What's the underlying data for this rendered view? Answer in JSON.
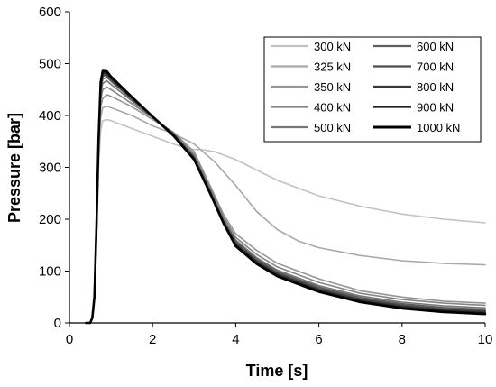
{
  "chart_data": {
    "type": "line",
    "title": "",
    "xlabel": "Time [s]",
    "ylabel": "Pressure [bar]",
    "xlim": [
      0,
      10
    ],
    "ylim": [
      0,
      600
    ],
    "xticks": [
      0,
      2,
      4,
      6,
      8,
      10
    ],
    "yticks": [
      0,
      100,
      200,
      300,
      400,
      500,
      600
    ],
    "grid": false,
    "legend_position": "top-right",
    "series": [
      {
        "name": "300 kN",
        "color": "#c2c2c2",
        "x": [
          0.4,
          0.5,
          0.55,
          0.6,
          0.65,
          0.7,
          0.75,
          0.8,
          0.9,
          1.0,
          1.5,
          2.0,
          2.5,
          2.9,
          3.2,
          3.5,
          4.0,
          5.0,
          6.0,
          7.0,
          8.0,
          9.0,
          10.0
        ],
        "y": [
          0,
          0,
          10,
          50,
          160,
          300,
          370,
          390,
          392,
          390,
          375,
          360,
          345,
          335,
          334,
          330,
          315,
          275,
          245,
          225,
          210,
          200,
          193
        ]
      },
      {
        "name": "325 kN",
        "color": "#a8a8a8",
        "x": [
          0.4,
          0.5,
          0.55,
          0.6,
          0.65,
          0.7,
          0.75,
          0.8,
          0.9,
          1.0,
          1.5,
          2.0,
          2.5,
          3.0,
          3.5,
          4.0,
          4.5,
          5.0,
          5.5,
          6.0,
          7.0,
          8.0,
          9.0,
          10.0
        ],
        "y": [
          0,
          0,
          10,
          50,
          170,
          320,
          395,
          415,
          418,
          415,
          400,
          380,
          365,
          345,
          310,
          265,
          215,
          180,
          158,
          145,
          130,
          120,
          115,
          112
        ]
      },
      {
        "name": "350 kN",
        "color": "#959595",
        "x": [
          0.4,
          0.5,
          0.55,
          0.6,
          0.65,
          0.7,
          0.75,
          0.8,
          0.9,
          1.0,
          1.5,
          2.0,
          2.5,
          3.0,
          3.4,
          3.7,
          4.0,
          4.5,
          5.0,
          6.0,
          7.0,
          8.0,
          9.0,
          10.0
        ],
        "y": [
          0,
          0,
          10,
          50,
          175,
          330,
          415,
          433,
          440,
          437,
          417,
          392,
          368,
          330,
          262,
          210,
          172,
          140,
          115,
          85,
          62,
          50,
          42,
          38
        ]
      },
      {
        "name": "400 kN",
        "color": "#858585",
        "x": [
          0.4,
          0.5,
          0.55,
          0.6,
          0.65,
          0.7,
          0.75,
          0.8,
          0.9,
          1.0,
          1.5,
          2.0,
          2.5,
          3.0,
          3.4,
          3.7,
          4.0,
          4.5,
          5.0,
          6.0,
          7.0,
          8.0,
          9.0,
          10.0
        ],
        "y": [
          0,
          0,
          10,
          50,
          178,
          340,
          430,
          450,
          455,
          450,
          423,
          395,
          367,
          325,
          258,
          205,
          165,
          132,
          108,
          78,
          57,
          45,
          38,
          34
        ]
      },
      {
        "name": "500 kN",
        "color": "#767676",
        "x": [
          0.4,
          0.5,
          0.55,
          0.6,
          0.65,
          0.7,
          0.75,
          0.8,
          0.9,
          1.0,
          1.5,
          2.0,
          2.5,
          3.0,
          3.4,
          3.7,
          4.0,
          4.5,
          5.0,
          6.0,
          7.0,
          8.0,
          9.0,
          10.0
        ],
        "y": [
          0,
          0,
          10,
          50,
          180,
          345,
          440,
          462,
          467,
          460,
          428,
          396,
          366,
          322,
          254,
          200,
          160,
          126,
          102,
          72,
          52,
          40,
          33,
          29
        ]
      },
      {
        "name": "600 kN",
        "color": "#5e5e5e",
        "x": [
          0.4,
          0.5,
          0.55,
          0.6,
          0.65,
          0.7,
          0.75,
          0.8,
          0.9,
          1.0,
          1.5,
          2.0,
          2.5,
          3.0,
          3.4,
          3.7,
          4.0,
          4.5,
          5.0,
          6.0,
          7.0,
          8.0,
          9.0,
          10.0
        ],
        "y": [
          0,
          0,
          10,
          50,
          182,
          348,
          448,
          470,
          474,
          466,
          431,
          397,
          365,
          320,
          252,
          198,
          157,
          123,
          99,
          69,
          49,
          37,
          30,
          26
        ]
      },
      {
        "name": "700 kN",
        "color": "#4c4c4c",
        "x": [
          0.4,
          0.5,
          0.55,
          0.6,
          0.65,
          0.7,
          0.75,
          0.8,
          0.9,
          1.0,
          1.5,
          2.0,
          2.5,
          3.0,
          3.4,
          3.7,
          4.0,
          4.5,
          5.0,
          6.0,
          7.0,
          8.0,
          9.0,
          10.0
        ],
        "y": [
          0,
          0,
          10,
          50,
          184,
          350,
          454,
          476,
          478,
          469,
          433,
          398,
          364,
          318,
          250,
          196,
          154,
          120,
          96,
          66,
          46,
          34,
          27,
          23
        ]
      },
      {
        "name": "800 kN",
        "color": "#383838",
        "x": [
          0.4,
          0.5,
          0.55,
          0.6,
          0.65,
          0.7,
          0.75,
          0.8,
          0.9,
          1.0,
          1.5,
          2.0,
          2.5,
          3.0,
          3.4,
          3.7,
          4.0,
          4.5,
          5.0,
          6.0,
          7.0,
          8.0,
          9.0,
          10.0
        ],
        "y": [
          0,
          0,
          10,
          50,
          185,
          352,
          458,
          480,
          481,
          471,
          434,
          398,
          363,
          317,
          249,
          195,
          152,
          118,
          94,
          64,
          44,
          32,
          25,
          21
        ]
      },
      {
        "name": "900 kN",
        "color": "#1e1e1e",
        "x": [
          0.4,
          0.5,
          0.55,
          0.6,
          0.65,
          0.7,
          0.75,
          0.8,
          0.9,
          1.0,
          1.5,
          2.0,
          2.5,
          3.0,
          3.4,
          3.7,
          4.0,
          4.5,
          5.0,
          6.0,
          7.0,
          8.0,
          9.0,
          10.0
        ],
        "y": [
          0,
          0,
          10,
          50,
          186,
          354,
          461,
          483,
          483,
          473,
          435,
          398,
          362,
          316,
          248,
          194,
          150,
          116,
          92,
          62,
          42,
          30,
          23,
          19
        ]
      },
      {
        "name": "1000 kN",
        "color": "#000000",
        "x": [
          0.4,
          0.5,
          0.55,
          0.6,
          0.65,
          0.7,
          0.75,
          0.8,
          0.9,
          1.0,
          1.5,
          2.0,
          2.5,
          3.0,
          3.4,
          3.7,
          4.0,
          4.5,
          5.0,
          6.0,
          7.0,
          8.0,
          9.0,
          10.0
        ],
        "y": [
          0,
          0,
          10,
          50,
          188,
          356,
          464,
          486,
          485,
          475,
          436,
          398,
          361,
          315,
          247,
          193,
          148,
          114,
          90,
          60,
          40,
          28,
          21,
          17
        ]
      }
    ]
  }
}
